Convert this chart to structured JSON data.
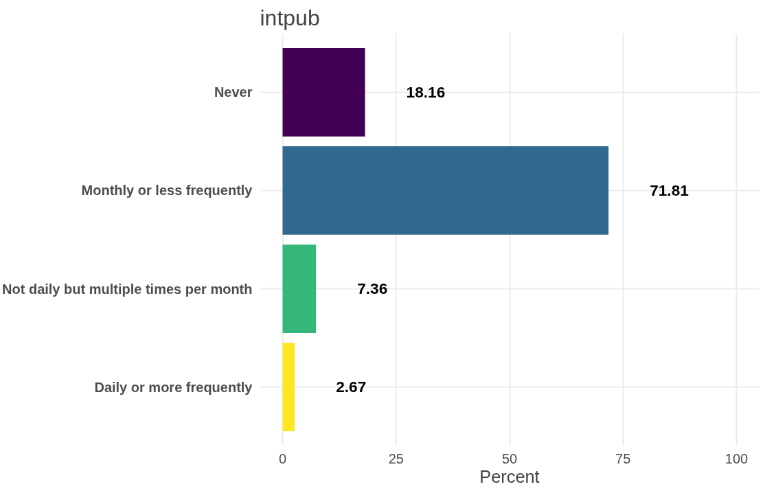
{
  "chart_data": {
    "type": "bar",
    "orientation": "horizontal",
    "title": "intpub",
    "xlabel": "Percent",
    "categories": [
      "Never",
      "Monthly or less frequently",
      "Not daily but multiple times per month",
      "Daily or more frequently"
    ],
    "values": [
      18.16,
      71.81,
      7.36,
      2.67
    ],
    "colors": [
      "#440154",
      "#31688e",
      "#35b779",
      "#fde725"
    ],
    "xlim": [
      -5,
      105
    ],
    "xticks": [
      0,
      25,
      50,
      75,
      100
    ],
    "grid": true,
    "data_labels": true
  }
}
